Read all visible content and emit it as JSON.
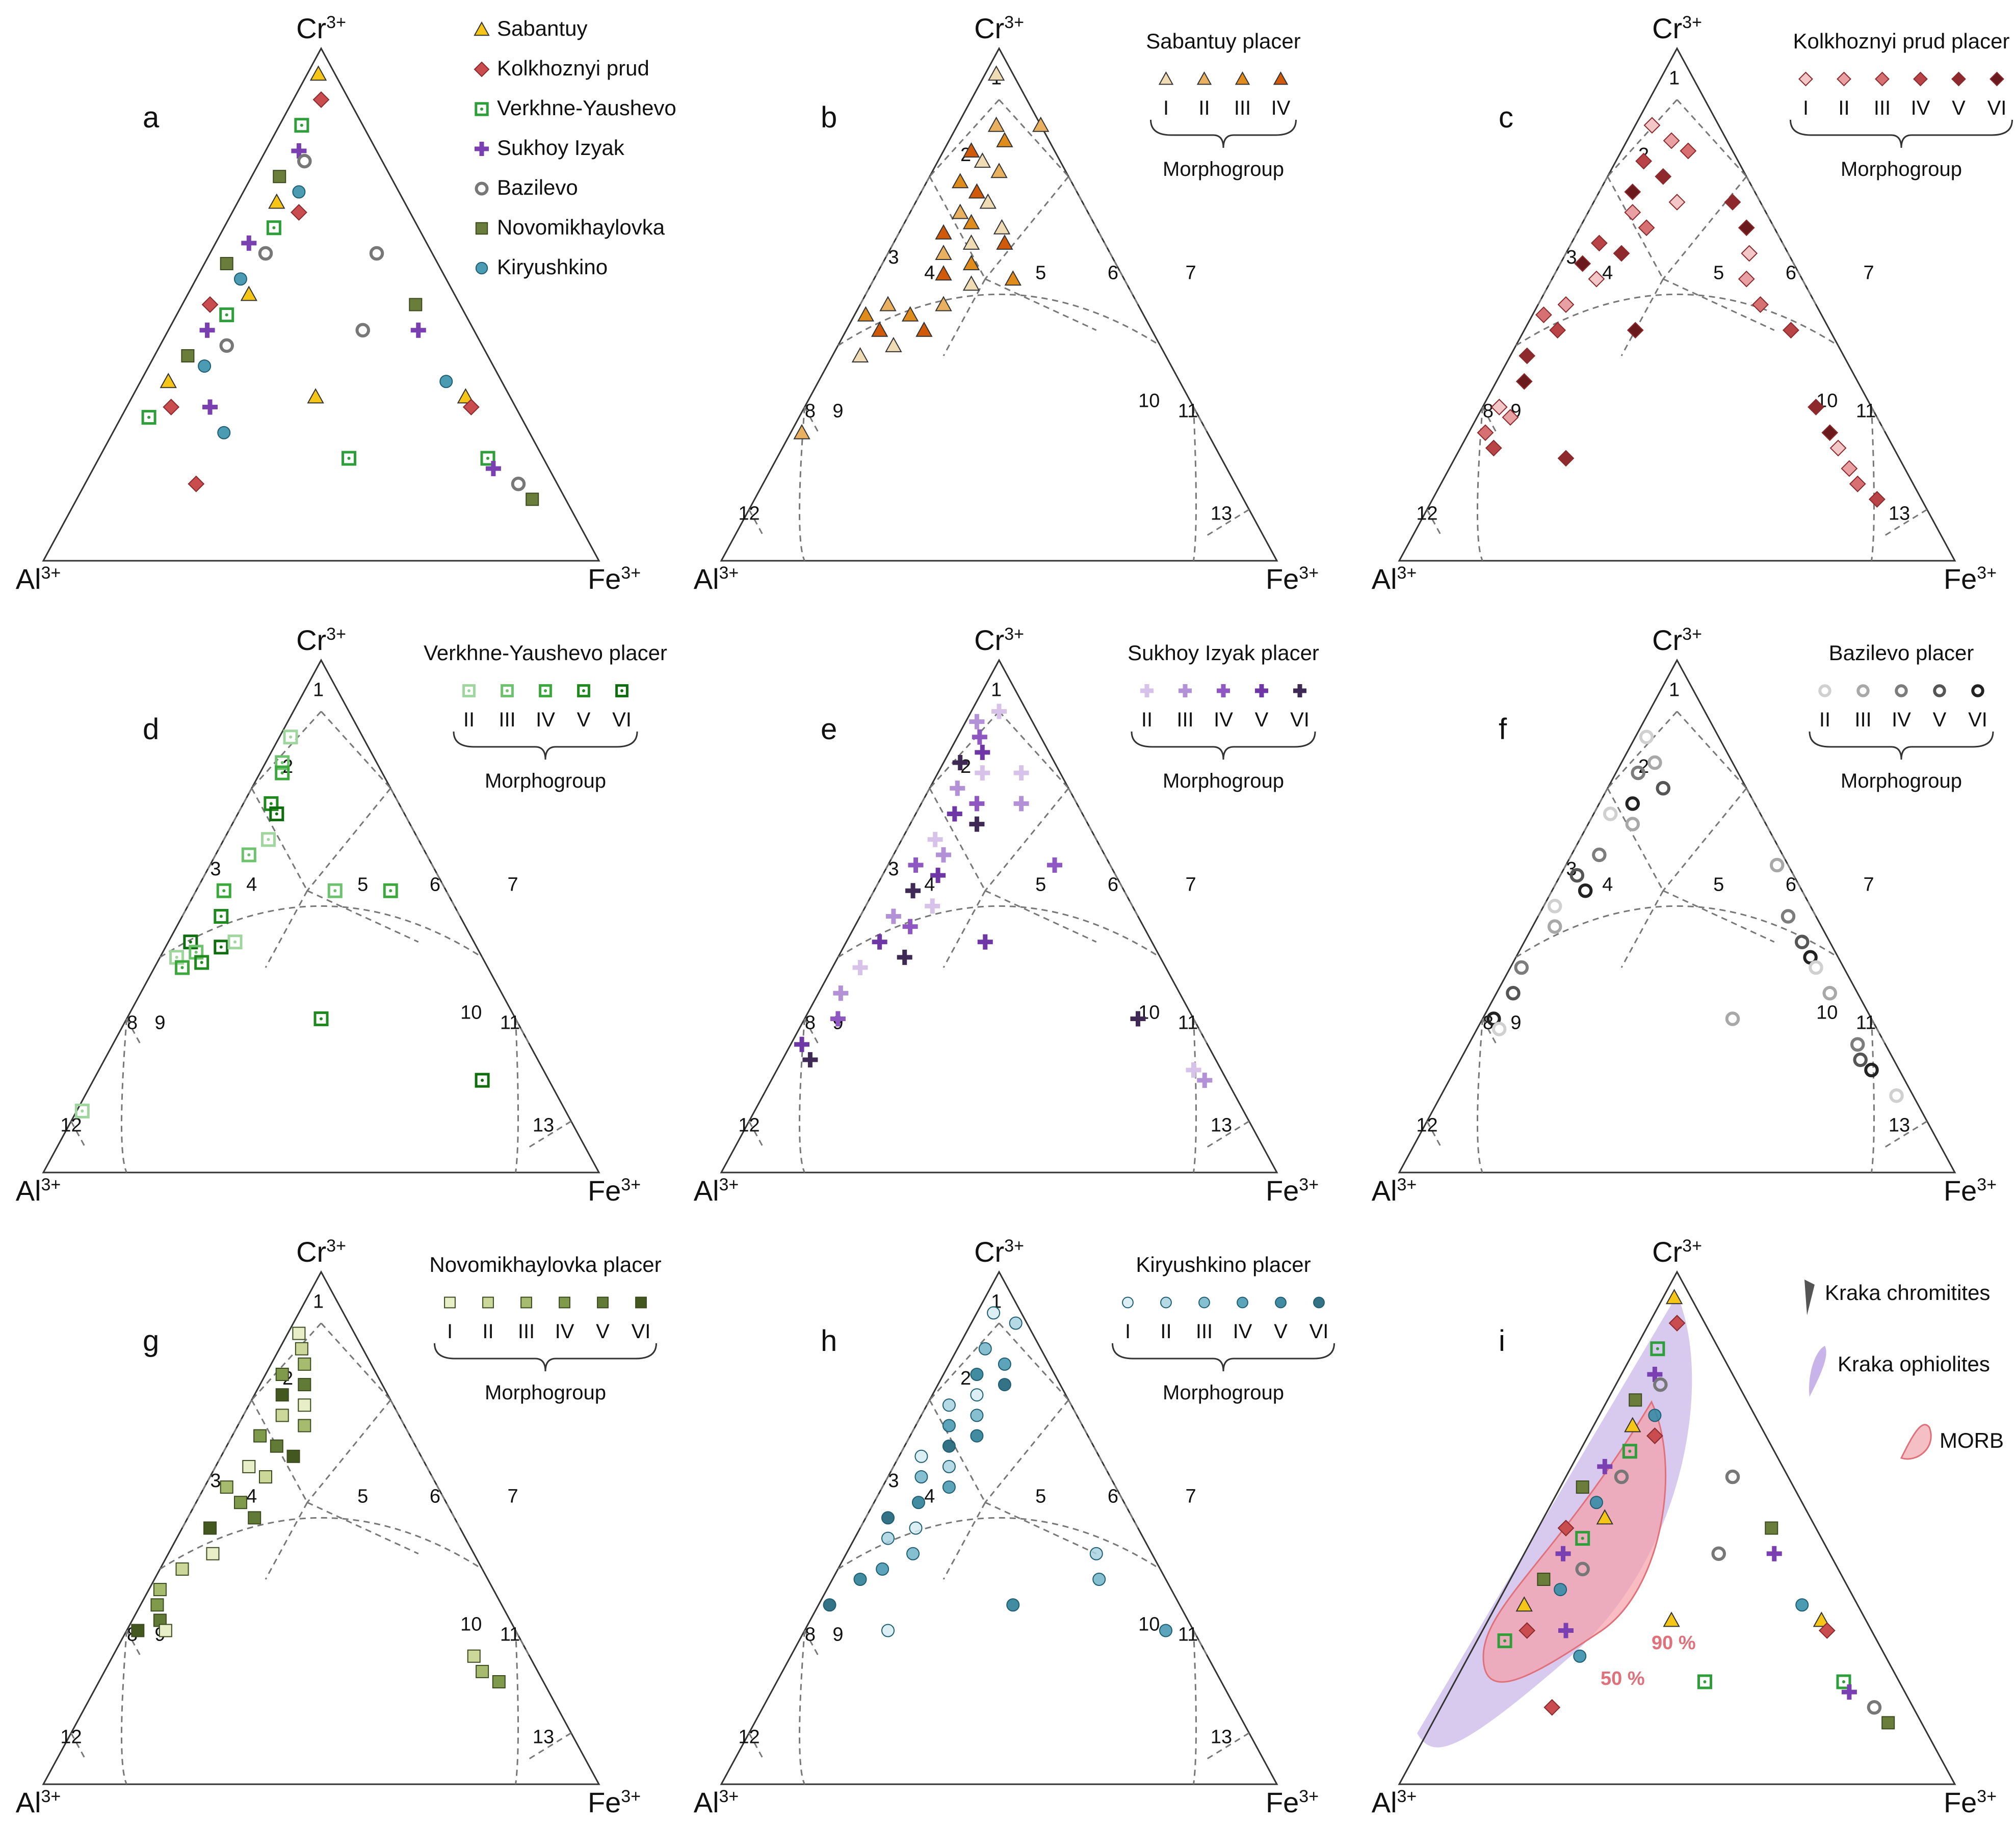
{
  "vertices": {
    "top": {
      "base": "Cr",
      "sup": "3+"
    },
    "left": {
      "base": "Al",
      "sup": "3+"
    },
    "right": {
      "base": "Fe",
      "sup": "3+"
    }
  },
  "field_numbers": [
    "1",
    "2",
    "3",
    "4",
    "5",
    "6",
    "7",
    "8",
    "9",
    "10",
    "11",
    "12",
    "13"
  ],
  "morphogroup_label": "Morphogroup",
  "symbol_colors": {
    "Sabantuy": "#f5c518",
    "Kolkhoznyi prud": "#c94c4f",
    "Verkhne-Yaushevo": "#2e9e3a",
    "Sukhoy Izyak": "#7a3fb0",
    "Bazilevo": "#777777",
    "Novomikhaylovka": "#6b7d3a",
    "Kiryushkino": "#2b8aa6"
  },
  "chart_data": [
    {
      "panel": "a",
      "type": "scatter",
      "coordinates": "ternary Cr3+ / Al3+ / Fe3+",
      "legend": [
        "Sabantuy",
        "Kolkhoznyi prud",
        "Verkhne-Yaushevo",
        "Sukhoy Izyak",
        "Bazilevo",
        "Novomikhaylovka",
        "Kiryushkino"
      ],
      "points_cr_fe": [
        [
          0.95,
          0.02
        ],
        [
          0.9,
          0.05
        ],
        [
          0.85,
          0.04
        ],
        [
          0.8,
          0.06
        ],
        [
          0.78,
          0.08
        ],
        [
          0.75,
          0.05
        ],
        [
          0.72,
          0.1
        ],
        [
          0.7,
          0.07
        ],
        [
          0.68,
          0.12
        ],
        [
          0.65,
          0.09
        ],
        [
          0.62,
          0.06
        ],
        [
          0.6,
          0.1
        ],
        [
          0.58,
          0.04
        ],
        [
          0.55,
          0.08
        ],
        [
          0.52,
          0.11
        ],
        [
          0.5,
          0.05
        ],
        [
          0.48,
          0.09
        ],
        [
          0.45,
          0.07
        ],
        [
          0.42,
          0.12
        ],
        [
          0.4,
          0.06
        ],
        [
          0.38,
          0.1
        ],
        [
          0.35,
          0.05
        ],
        [
          0.3,
          0.08
        ],
        [
          0.28,
          0.05
        ],
        [
          0.3,
          0.15
        ],
        [
          0.45,
          0.35
        ],
        [
          0.5,
          0.42
        ],
        [
          0.35,
          0.55
        ],
        [
          0.32,
          0.6
        ],
        [
          0.3,
          0.62
        ],
        [
          0.2,
          0.7
        ],
        [
          0.18,
          0.72
        ],
        [
          0.15,
          0.78
        ],
        [
          0.12,
          0.82
        ],
        [
          0.25,
          0.2
        ],
        [
          0.32,
          0.33
        ],
        [
          0.15,
          0.2
        ],
        [
          0.2,
          0.45
        ],
        [
          0.45,
          0.45
        ],
        [
          0.6,
          0.3
        ]
      ]
    },
    {
      "panel": "b",
      "type": "scatter",
      "coordinates": "ternary Cr3+ / Al3+ / Fe3+",
      "title": "Sabantuy placer",
      "morphogroups": [
        "I",
        "II",
        "III",
        "IV"
      ],
      "points_cr_fe": [
        [
          0.95,
          0.02
        ],
        [
          0.85,
          0.07
        ],
        [
          0.82,
          0.1
        ],
        [
          0.8,
          0.05
        ],
        [
          0.78,
          0.08
        ],
        [
          0.76,
          0.12
        ],
        [
          0.74,
          0.06
        ],
        [
          0.72,
          0.1
        ],
        [
          0.7,
          0.13
        ],
        [
          0.68,
          0.09
        ],
        [
          0.66,
          0.12
        ],
        [
          0.64,
          0.08
        ],
        [
          0.62,
          0.14
        ],
        [
          0.6,
          0.1
        ],
        [
          0.58,
          0.16
        ],
        [
          0.56,
          0.12
        ],
        [
          0.54,
          0.18
        ],
        [
          0.5,
          0.15
        ],
        [
          0.48,
          0.1
        ],
        [
          0.45,
          0.14
        ],
        [
          0.42,
          0.1
        ],
        [
          0.5,
          0.05
        ],
        [
          0.48,
          0.02
        ],
        [
          0.45,
          0.06
        ],
        [
          0.4,
          0.05
        ],
        [
          0.85,
          0.15
        ],
        [
          0.55,
          0.25
        ],
        [
          0.62,
          0.2
        ],
        [
          0.65,
          0.18
        ],
        [
          0.25,
          0.02
        ]
      ]
    },
    {
      "panel": "c",
      "type": "scatter",
      "coordinates": "ternary Cr3+ / Al3+ / Fe3+",
      "title": "Kolkhoznyi prud placer",
      "morphogroups": [
        "I",
        "II",
        "III",
        "IV",
        "V",
        "VI"
      ],
      "points_cr_fe": [
        [
          0.85,
          0.03
        ],
        [
          0.82,
          0.08
        ],
        [
          0.8,
          0.12
        ],
        [
          0.78,
          0.05
        ],
        [
          0.75,
          0.1
        ],
        [
          0.72,
          0.06
        ],
        [
          0.7,
          0.15
        ],
        [
          0.68,
          0.08
        ],
        [
          0.65,
          0.12
        ],
        [
          0.62,
          0.05
        ],
        [
          0.6,
          0.1
        ],
        [
          0.58,
          0.04
        ],
        [
          0.55,
          0.08
        ],
        [
          0.5,
          0.05
        ],
        [
          0.48,
          0.02
        ],
        [
          0.45,
          0.06
        ],
        [
          0.4,
          0.03
        ],
        [
          0.35,
          0.05
        ],
        [
          0.3,
          0.03
        ],
        [
          0.28,
          0.06
        ],
        [
          0.25,
          0.03
        ],
        [
          0.22,
          0.06
        ],
        [
          0.7,
          0.25
        ],
        [
          0.65,
          0.3
        ],
        [
          0.6,
          0.33
        ],
        [
          0.55,
          0.35
        ],
        [
          0.5,
          0.4
        ],
        [
          0.45,
          0.48
        ],
        [
          0.3,
          0.6
        ],
        [
          0.25,
          0.65
        ],
        [
          0.22,
          0.68
        ],
        [
          0.18,
          0.72
        ],
        [
          0.15,
          0.75
        ],
        [
          0.12,
          0.8
        ],
        [
          0.2,
          0.2
        ],
        [
          0.45,
          0.2
        ]
      ]
    },
    {
      "panel": "d",
      "type": "scatter",
      "coordinates": "ternary Cr3+ / Al3+ / Fe3+",
      "title": "Verkhne-Yaushevo placer",
      "morphogroups": [
        "II",
        "III",
        "IV",
        "V",
        "VI"
      ],
      "points_cr_fe": [
        [
          0.85,
          0.02
        ],
        [
          0.8,
          0.03
        ],
        [
          0.78,
          0.04
        ],
        [
          0.72,
          0.05
        ],
        [
          0.7,
          0.07
        ],
        [
          0.65,
          0.08
        ],
        [
          0.62,
          0.06
        ],
        [
          0.55,
          0.05
        ],
        [
          0.5,
          0.07
        ],
        [
          0.45,
          0.04
        ],
        [
          0.42,
          0.03
        ],
        [
          0.43,
          0.06
        ],
        [
          0.4,
          0.05
        ],
        [
          0.41,
          0.08
        ],
        [
          0.44,
          0.1
        ],
        [
          0.45,
          0.12
        ],
        [
          0.55,
          0.25
        ],
        [
          0.55,
          0.35
        ],
        [
          0.3,
          0.35
        ],
        [
          0.18,
          0.7
        ],
        [
          0.12,
          0.01
        ]
      ]
    },
    {
      "panel": "e",
      "type": "scatter",
      "coordinates": "ternary Cr3+ / Al3+ / Fe3+",
      "title": "Sukhoy Izyak placer",
      "morphogroups": [
        "II",
        "III",
        "IV",
        "V",
        "VI"
      ],
      "points_cr_fe": [
        [
          0.9,
          0.05
        ],
        [
          0.88,
          0.02
        ],
        [
          0.85,
          0.04
        ],
        [
          0.82,
          0.06
        ],
        [
          0.8,
          0.03
        ],
        [
          0.78,
          0.08
        ],
        [
          0.75,
          0.05
        ],
        [
          0.72,
          0.1
        ],
        [
          0.7,
          0.07
        ],
        [
          0.68,
          0.12
        ],
        [
          0.65,
          0.06
        ],
        [
          0.62,
          0.09
        ],
        [
          0.6,
          0.05
        ],
        [
          0.58,
          0.1
        ],
        [
          0.55,
          0.07
        ],
        [
          0.52,
          0.12
        ],
        [
          0.5,
          0.06
        ],
        [
          0.48,
          0.1
        ],
        [
          0.45,
          0.06
        ],
        [
          0.42,
          0.12
        ],
        [
          0.4,
          0.05
        ],
        [
          0.35,
          0.04
        ],
        [
          0.3,
          0.06
        ],
        [
          0.25,
          0.02
        ],
        [
          0.22,
          0.05
        ],
        [
          0.78,
          0.15
        ],
        [
          0.72,
          0.18
        ],
        [
          0.6,
          0.3
        ],
        [
          0.45,
          0.25
        ],
        [
          0.3,
          0.6
        ],
        [
          0.2,
          0.75
        ],
        [
          0.18,
          0.78
        ]
      ]
    },
    {
      "panel": "f",
      "type": "scatter",
      "coordinates": "ternary Cr3+ / Al3+ / Fe3+",
      "title": "Bazilevo placer",
      "morphogroups": [
        "II",
        "III",
        "IV",
        "V",
        "VI"
      ],
      "points_cr_fe": [
        [
          0.85,
          0.02
        ],
        [
          0.8,
          0.06
        ],
        [
          0.78,
          0.04
        ],
        [
          0.75,
          0.1
        ],
        [
          0.72,
          0.06
        ],
        [
          0.7,
          0.03
        ],
        [
          0.68,
          0.08
        ],
        [
          0.62,
          0.05
        ],
        [
          0.58,
          0.03
        ],
        [
          0.55,
          0.06
        ],
        [
          0.52,
          0.02
        ],
        [
          0.48,
          0.04
        ],
        [
          0.4,
          0.02
        ],
        [
          0.35,
          0.03
        ],
        [
          0.3,
          0.02
        ],
        [
          0.28,
          0.04
        ],
        [
          0.6,
          0.38
        ],
        [
          0.5,
          0.45
        ],
        [
          0.45,
          0.5
        ],
        [
          0.42,
          0.53
        ],
        [
          0.4,
          0.55
        ],
        [
          0.35,
          0.6
        ],
        [
          0.25,
          0.7
        ],
        [
          0.22,
          0.72
        ],
        [
          0.2,
          0.75
        ],
        [
          0.15,
          0.82
        ],
        [
          0.3,
          0.45
        ]
      ]
    },
    {
      "panel": "g",
      "type": "scatter",
      "coordinates": "ternary Cr3+ / Al3+ / Fe3+",
      "title": "Novomikhaylovka placer",
      "morphogroups": [
        "I",
        "II",
        "III",
        "IV",
        "V",
        "VI"
      ],
      "points_cr_fe": [
        [
          0.88,
          0.02
        ],
        [
          0.85,
          0.04
        ],
        [
          0.82,
          0.06
        ],
        [
          0.8,
          0.03
        ],
        [
          0.78,
          0.08
        ],
        [
          0.76,
          0.05
        ],
        [
          0.74,
          0.1
        ],
        [
          0.72,
          0.07
        ],
        [
          0.7,
          0.12
        ],
        [
          0.68,
          0.05
        ],
        [
          0.66,
          0.09
        ],
        [
          0.64,
          0.13
        ],
        [
          0.62,
          0.06
        ],
        [
          0.6,
          0.1
        ],
        [
          0.58,
          0.04
        ],
        [
          0.55,
          0.08
        ],
        [
          0.52,
          0.12
        ],
        [
          0.5,
          0.05
        ],
        [
          0.45,
          0.08
        ],
        [
          0.42,
          0.04
        ],
        [
          0.38,
          0.02
        ],
        [
          0.35,
          0.03
        ],
        [
          0.32,
          0.05
        ],
        [
          0.3,
          0.02
        ],
        [
          0.3,
          0.07
        ],
        [
          0.25,
          0.65
        ],
        [
          0.22,
          0.68
        ],
        [
          0.2,
          0.72
        ]
      ]
    },
    {
      "panel": "h",
      "type": "scatter",
      "coordinates": "ternary Cr3+ / Al3+ / Fe3+",
      "title": "Kiryushkino placer",
      "morphogroups": [
        "I",
        "II",
        "III",
        "IV",
        "V",
        "VI"
      ],
      "points_cr_fe": [
        [
          0.92,
          0.03
        ],
        [
          0.9,
          0.08
        ],
        [
          0.85,
          0.05
        ],
        [
          0.82,
          0.1
        ],
        [
          0.8,
          0.06
        ],
        [
          0.78,
          0.12
        ],
        [
          0.76,
          0.08
        ],
        [
          0.74,
          0.04
        ],
        [
          0.72,
          0.1
        ],
        [
          0.7,
          0.06
        ],
        [
          0.68,
          0.12
        ],
        [
          0.66,
          0.08
        ],
        [
          0.64,
          0.04
        ],
        [
          0.62,
          0.1
        ],
        [
          0.6,
          0.06
        ],
        [
          0.58,
          0.12
        ],
        [
          0.55,
          0.08
        ],
        [
          0.52,
          0.04
        ],
        [
          0.5,
          0.1
        ],
        [
          0.48,
          0.06
        ],
        [
          0.45,
          0.12
        ],
        [
          0.42,
          0.08
        ],
        [
          0.4,
          0.05
        ],
        [
          0.35,
          0.02
        ],
        [
          0.3,
          0.15
        ],
        [
          0.45,
          0.45
        ],
        [
          0.4,
          0.48
        ],
        [
          0.3,
          0.65
        ],
        [
          0.35,
          0.35
        ]
      ]
    },
    {
      "panel": "i",
      "type": "scatter",
      "coordinates": "ternary Cr3+ / Al3+ / Fe3+",
      "legend": [
        "Kraka chromitites",
        "Kraka ophiolites",
        "MORB"
      ],
      "annotations": [
        "90 %",
        "50 %"
      ],
      "points_cr_fe": [
        [
          0.95,
          0.02
        ],
        [
          0.9,
          0.05
        ],
        [
          0.85,
          0.04
        ],
        [
          0.8,
          0.06
        ],
        [
          0.78,
          0.08
        ],
        [
          0.75,
          0.05
        ],
        [
          0.72,
          0.1
        ],
        [
          0.7,
          0.07
        ],
        [
          0.68,
          0.12
        ],
        [
          0.65,
          0.09
        ],
        [
          0.62,
          0.06
        ],
        [
          0.6,
          0.1
        ],
        [
          0.58,
          0.04
        ],
        [
          0.55,
          0.08
        ],
        [
          0.52,
          0.11
        ],
        [
          0.5,
          0.05
        ],
        [
          0.48,
          0.09
        ],
        [
          0.45,
          0.07
        ],
        [
          0.42,
          0.12
        ],
        [
          0.4,
          0.06
        ],
        [
          0.38,
          0.1
        ],
        [
          0.35,
          0.05
        ],
        [
          0.3,
          0.08
        ],
        [
          0.28,
          0.05
        ],
        [
          0.3,
          0.15
        ],
        [
          0.45,
          0.35
        ],
        [
          0.5,
          0.42
        ],
        [
          0.35,
          0.55
        ],
        [
          0.32,
          0.6
        ],
        [
          0.3,
          0.62
        ],
        [
          0.2,
          0.7
        ],
        [
          0.18,
          0.72
        ],
        [
          0.15,
          0.78
        ],
        [
          0.12,
          0.82
        ],
        [
          0.25,
          0.2
        ],
        [
          0.32,
          0.33
        ],
        [
          0.15,
          0.2
        ],
        [
          0.2,
          0.45
        ],
        [
          0.45,
          0.45
        ],
        [
          0.6,
          0.3
        ]
      ]
    }
  ],
  "series_colors_by_panel": {
    "b": [
      "#f0dcb4",
      "#e9b060",
      "#e08c1c",
      "#d05a0a"
    ],
    "c": [
      "#f3c7c7",
      "#e8a0a2",
      "#d67073",
      "#b84447",
      "#8e2a2e",
      "#6a1a1d"
    ],
    "d": [
      "#9ed69e",
      "#6dc26d",
      "#3aa83a",
      "#1e8a1e",
      "#0e6e0e"
    ],
    "e": [
      "#d7c2ea",
      "#b291d6",
      "#8f57c2",
      "#6f37a6",
      "#3e2a55"
    ],
    "f": [
      "#d0d0d0",
      "#a8a8a8",
      "#7c7c7c",
      "#555555",
      "#222222"
    ],
    "g": [
      "#e8eec8",
      "#cbd89a",
      "#a6bb6e",
      "#7f9a4a",
      "#617a35",
      "#44571f"
    ],
    "h": [
      "#d6ecf2",
      "#a8d4e0",
      "#70b4c8",
      "#3e94ad",
      "#217890",
      "#115b70"
    ]
  },
  "panel_a_colors": [
    "#f5c518",
    "#c94c4f",
    "#2e9e3a",
    "#7a3fb0",
    "#777777",
    "#6b7d3a",
    "#2b8aa6"
  ]
}
